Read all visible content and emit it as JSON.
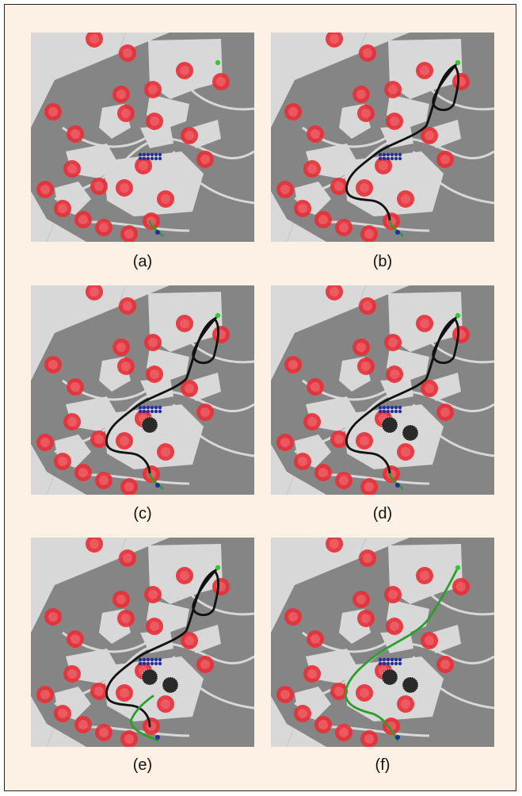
{
  "panels": [
    {
      "id": "a",
      "label": "(a)",
      "path_black": false,
      "path_green": "short",
      "blobs": 0
    },
    {
      "id": "b",
      "label": "(b)",
      "path_black": true,
      "path_green": "short",
      "blobs": 0
    },
    {
      "id": "c",
      "label": "(c)",
      "path_black": true,
      "path_green": "short",
      "blobs": 1
    },
    {
      "id": "d",
      "label": "(d)",
      "path_black": true,
      "path_green": "short",
      "blobs": 2
    },
    {
      "id": "e",
      "label": "(e)",
      "path_black": true,
      "path_green": "half",
      "blobs": 2
    },
    {
      "id": "f",
      "label": "(f)",
      "path_black": false,
      "path_green": "full",
      "blobs": 2
    }
  ],
  "colors": {
    "background": "#fcf1e4",
    "map_background": "#d8d8d8",
    "land": "#858585",
    "obstacle": "#e8313a",
    "robots": "#24309a",
    "goal": "#32c832",
    "path_explored": "#111111",
    "path_final": "#2aa02a"
  }
}
